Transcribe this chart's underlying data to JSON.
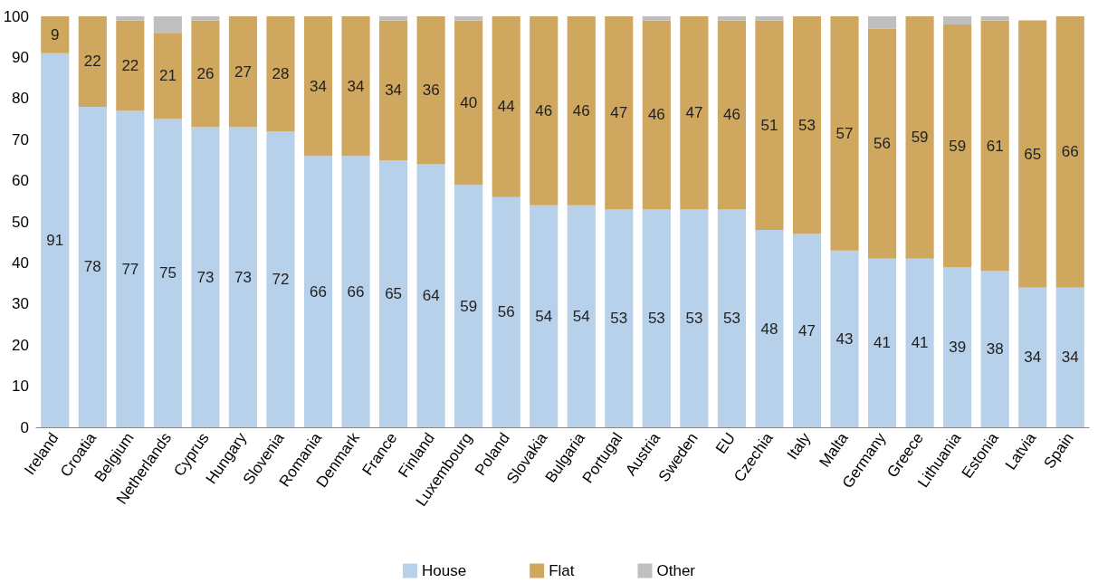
{
  "chart_data": {
    "type": "bar",
    "stacked": true,
    "categories": [
      "Ireland",
      "Croatia",
      "Belgium",
      "Netherlands",
      "Cyprus",
      "Hungary",
      "Slovenia",
      "Romania",
      "Denmark",
      "France",
      "Finland",
      "Luxembourg",
      "Poland",
      "Slovakia",
      "Bulgaria",
      "Portugal",
      "Austria",
      "Sweden",
      "EU",
      "Czechia",
      "Italy",
      "Malta",
      "Germany",
      "Greece",
      "Lithuania",
      "Estonia",
      "Latvia",
      "Spain"
    ],
    "series": [
      {
        "name": "House",
        "color": "#b8d1ea",
        "values": [
          91,
          78,
          77,
          75,
          73,
          73,
          72,
          66,
          66,
          65,
          64,
          59,
          56,
          54,
          54,
          53,
          53,
          53,
          53,
          48,
          47,
          43,
          41,
          41,
          39,
          38,
          34,
          34
        ],
        "value_labels": [
          "91",
          "78",
          "77",
          "75",
          "73",
          "73",
          "72",
          "66",
          "66",
          "65",
          "64",
          "59",
          "56",
          "54",
          "54",
          "53",
          "53",
          "53",
          "53",
          "48",
          "47",
          "43",
          "41",
          "41",
          "39",
          "38",
          "34",
          "34"
        ]
      },
      {
        "name": "Flat",
        "color": "#cfa75f",
        "values": [
          9,
          22,
          22,
          21,
          26,
          27,
          28,
          34,
          34,
          34,
          36,
          40,
          44,
          46,
          46,
          47,
          46,
          47,
          46,
          51,
          53,
          57,
          56,
          59,
          59,
          61,
          65,
          66
        ],
        "value_labels": [
          "9",
          "22",
          "22",
          "21",
          "26",
          "27",
          "28",
          "34",
          "34",
          "34",
          "36",
          "40",
          "44",
          "46",
          "46",
          "47",
          "46",
          "47",
          "46",
          "51",
          "53",
          "57",
          "56",
          "59",
          "59",
          "61",
          "65",
          "66"
        ]
      },
      {
        "name": "Other",
        "color": "#bfbfbf",
        "values": [
          0,
          0,
          1,
          4,
          1,
          0,
          0,
          0,
          0,
          1,
          0,
          1,
          0,
          0,
          0,
          0,
          1,
          0,
          1,
          1,
          0,
          0,
          3,
          0,
          2,
          1,
          0,
          0
        ]
      }
    ],
    "ylim": [
      0,
      100
    ],
    "yticks": [
      0,
      10,
      20,
      30,
      40,
      50,
      60,
      70,
      80,
      90,
      100
    ],
    "grid": false,
    "legend": "bottom"
  }
}
